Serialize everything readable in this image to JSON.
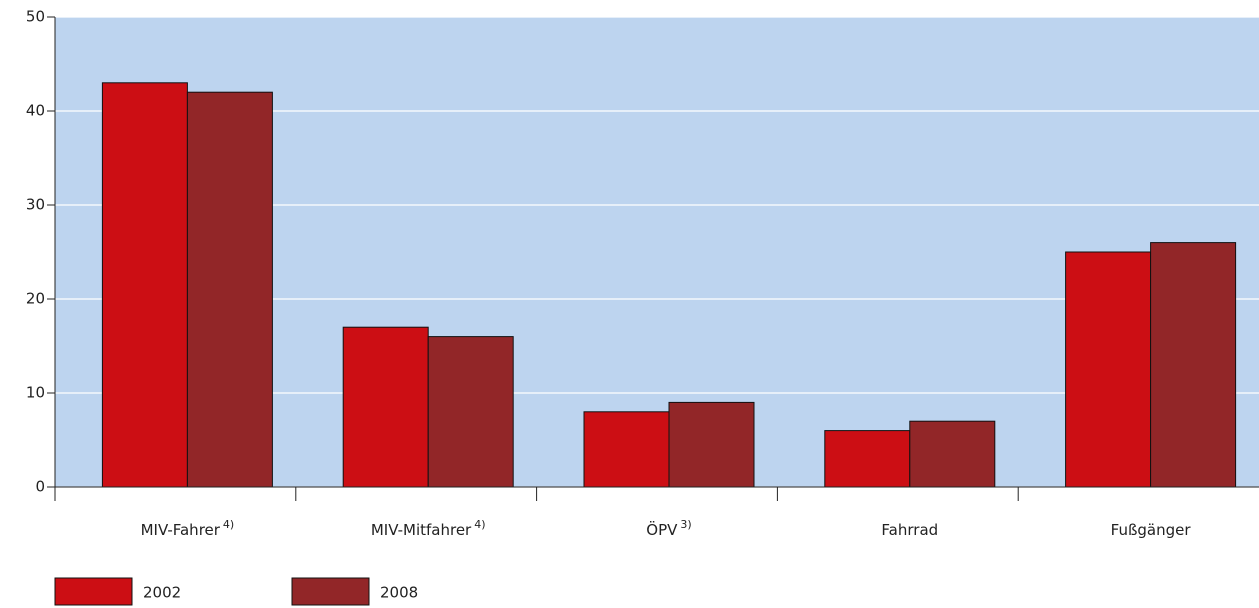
{
  "chart_data": {
    "type": "bar",
    "categories": [
      "MIV-Fahrer",
      "MIV-Mitfahrer",
      "ÖPV",
      "Fahrrad",
      "Fußgänger"
    ],
    "category_notes": [
      "4)",
      "4)",
      "3)",
      null,
      null
    ],
    "series": [
      {
        "name": "2002",
        "color": "#cc0e14",
        "values": [
          43,
          17,
          8,
          6,
          25
        ]
      },
      {
        "name": "2008",
        "color": "#922628",
        "values": [
          42,
          16,
          9,
          7,
          26
        ]
      }
    ],
    "ylim": [
      0,
      50
    ],
    "yticks": [
      0,
      10,
      20,
      30,
      40,
      50
    ],
    "grid": true
  }
}
